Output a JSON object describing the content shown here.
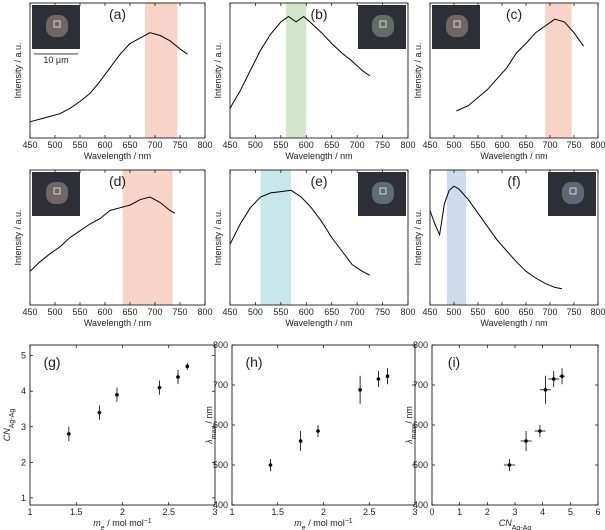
{
  "chart_data": [
    {
      "type": "line",
      "label": "(a)",
      "xlabel": "Wavelength / nm",
      "ylabel": "Intensity / a.u.",
      "xlim": [
        450,
        800
      ],
      "xticks": [
        450,
        500,
        550,
        600,
        650,
        700,
        750,
        800
      ],
      "ylim": [
        0,
        1
      ],
      "band": [
        680,
        745
      ],
      "band_color": "#f6cdbd",
      "inset": "left",
      "scale_bar": "10 μm",
      "x": [
        450,
        470,
        490,
        510,
        530,
        550,
        570,
        590,
        610,
        630,
        650,
        670,
        690,
        710,
        730,
        750,
        765
      ],
      "series": [
        {
          "color": "#000000",
          "values": [
            0.12,
            0.14,
            0.16,
            0.18,
            0.22,
            0.27,
            0.33,
            0.42,
            0.52,
            0.62,
            0.7,
            0.74,
            0.78,
            0.76,
            0.72,
            0.66,
            0.62
          ]
        }
      ]
    },
    {
      "type": "line",
      "label": "(b)",
      "xlabel": "Wavelength / nm",
      "ylabel": "Intensity / a.u.",
      "xlim": [
        450,
        800
      ],
      "xticks": [
        450,
        500,
        550,
        600,
        650,
        700,
        750,
        800
      ],
      "ylim": [
        0,
        1
      ],
      "band": [
        560,
        600
      ],
      "band_color": "#c9e2c2",
      "inset": "right",
      "x": [
        450,
        470,
        490,
        510,
        530,
        550,
        565,
        580,
        595,
        610,
        630,
        650,
        670,
        690,
        710,
        725
      ],
      "series": [
        {
          "color": "#000000",
          "values": [
            0.22,
            0.35,
            0.5,
            0.65,
            0.77,
            0.86,
            0.9,
            0.86,
            0.9,
            0.85,
            0.78,
            0.7,
            0.63,
            0.57,
            0.5,
            0.46
          ]
        }
      ]
    },
    {
      "type": "line",
      "label": "(c)",
      "xlabel": "Wavelength / nm",
      "ylabel": "Intensity / a.u.",
      "xlim": [
        450,
        800
      ],
      "xticks": [
        450,
        500,
        550,
        600,
        650,
        700,
        750,
        800
      ],
      "ylim": [
        0,
        1
      ],
      "band": [
        690,
        745
      ],
      "band_color": "#f6cdbd",
      "inset": "left",
      "x": [
        505,
        530,
        550,
        570,
        590,
        610,
        630,
        650,
        670,
        690,
        710,
        730,
        750,
        770
      ],
      "series": [
        {
          "color": "#000000",
          "values": [
            0.2,
            0.24,
            0.3,
            0.36,
            0.44,
            0.52,
            0.63,
            0.7,
            0.78,
            0.83,
            0.88,
            0.86,
            0.78,
            0.68
          ]
        }
      ]
    },
    {
      "type": "line",
      "label": "(d)",
      "xlabel": "Wavelength / nm",
      "ylabel": "Intensity / a.u.",
      "xlim": [
        450,
        800
      ],
      "xticks": [
        450,
        500,
        550,
        600,
        650,
        700,
        750,
        800
      ],
      "ylim": [
        0,
        1
      ],
      "band": [
        635,
        735
      ],
      "band_color": "#f6cdbd",
      "inset": "left",
      "x": [
        450,
        470,
        490,
        510,
        530,
        550,
        570,
        590,
        610,
        630,
        650,
        670,
        690,
        710,
        730,
        740
      ],
      "series": [
        {
          "color": "#000000",
          "values": [
            0.25,
            0.32,
            0.38,
            0.43,
            0.5,
            0.55,
            0.6,
            0.64,
            0.7,
            0.72,
            0.74,
            0.78,
            0.8,
            0.76,
            0.7,
            0.68
          ]
        }
      ]
    },
    {
      "type": "line",
      "label": "(e)",
      "xlabel": "Wavelength / nm",
      "ylabel": "Intensity / a.u.",
      "xlim": [
        450,
        800
      ],
      "xticks": [
        450,
        500,
        550,
        600,
        650,
        700,
        750,
        800
      ],
      "ylim": [
        0,
        1
      ],
      "band": [
        510,
        570
      ],
      "band_color": "#c0e3e6",
      "inset": "right",
      "x": [
        450,
        470,
        490,
        510,
        530,
        550,
        570,
        590,
        610,
        630,
        650,
        670,
        690,
        710,
        725
      ],
      "series": [
        {
          "color": "#000000",
          "values": [
            0.45,
            0.6,
            0.72,
            0.8,
            0.83,
            0.84,
            0.85,
            0.8,
            0.72,
            0.62,
            0.5,
            0.4,
            0.3,
            0.25,
            0.22
          ]
        }
      ]
    },
    {
      "type": "line",
      "label": "(f)",
      "xlabel": "Wavelength / nm",
      "ylabel": "Intensity / a.u.",
      "xlim": [
        450,
        800
      ],
      "xticks": [
        450,
        500,
        550,
        600,
        650,
        700,
        750,
        800
      ],
      "ylim": [
        0,
        1
      ],
      "band": [
        485,
        525
      ],
      "band_color": "#c6d4eb",
      "inset": "right",
      "x": [
        450,
        460,
        470,
        480,
        490,
        500,
        510,
        530,
        550,
        570,
        590,
        610,
        630,
        650,
        670,
        690,
        710,
        725
      ],
      "series": [
        {
          "color": "#000000",
          "values": [
            0.7,
            0.6,
            0.52,
            0.75,
            0.85,
            0.88,
            0.86,
            0.78,
            0.68,
            0.58,
            0.48,
            0.4,
            0.32,
            0.25,
            0.2,
            0.16,
            0.13,
            0.12
          ]
        }
      ]
    },
    {
      "type": "scatter",
      "label": "(g)",
      "xlabel": {
        "main": "m",
        "sub": "e",
        "rest": " / mol mol",
        "sup": "−1"
      },
      "ylabel": {
        "main": "CN",
        "sub": "Ag-Ag"
      },
      "xlim": [
        1,
        3
      ],
      "xticks": [
        1,
        1.5,
        2,
        2.5,
        3
      ],
      "ylim": [
        0.8,
        5.3
      ],
      "yticks": [
        1,
        2,
        3,
        4,
        5
      ],
      "x": [
        1.42,
        1.75,
        1.94,
        2.4,
        2.6,
        2.7
      ],
      "x_errors": [
        0.02,
        0.02,
        0.02,
        0.02,
        0.02,
        0.02
      ],
      "values": [
        2.8,
        3.4,
        3.9,
        4.1,
        4.4,
        4.7
      ],
      "y_errors": [
        0.2,
        0.2,
        0.2,
        0.2,
        0.2,
        0.1
      ]
    },
    {
      "type": "scatter",
      "label": "(h)",
      "xlabel": {
        "main": "m",
        "sub": "e",
        "rest": " / mol mol",
        "sup": "−1"
      },
      "ylabel": {
        "main": "λ",
        "sub": "max",
        "rest": " / nm"
      },
      "xlim": [
        1,
        3
      ],
      "xticks": [
        1,
        1.5,
        2,
        2.5,
        3
      ],
      "ylim": [
        400,
        800
      ],
      "yticks": [
        400,
        500,
        600,
        700,
        800
      ],
      "x": [
        1.42,
        1.75,
        1.94,
        2.4,
        2.6,
        2.7
      ],
      "x_errors": [
        0.02,
        0.02,
        0.02,
        0.02,
        0.02,
        0.02
      ],
      "values": [
        500,
        560,
        585,
        688,
        715,
        722
      ],
      "y_errors": [
        15,
        25,
        15,
        35,
        20,
        20
      ]
    },
    {
      "type": "scatter",
      "label": "(i)",
      "xlabel": {
        "main": "CN",
        "sub": "Ag-Ag"
      },
      "ylabel": {
        "main": "λ",
        "sub": "max",
        "rest": " / nm"
      },
      "xlim": [
        0,
        6
      ],
      "xticks": [
        0,
        1,
        2,
        3,
        4,
        5,
        6
      ],
      "ylim": [
        400,
        800
      ],
      "yticks": [
        400,
        500,
        600,
        700,
        800
      ],
      "x": [
        2.8,
        3.4,
        3.9,
        4.1,
        4.4,
        4.7
      ],
      "x_errors": [
        0.2,
        0.2,
        0.2,
        0.2,
        0.2,
        0.1
      ],
      "values": [
        500,
        560,
        585,
        688,
        715,
        722
      ],
      "y_errors": [
        15,
        25,
        15,
        35,
        20,
        20
      ]
    }
  ]
}
